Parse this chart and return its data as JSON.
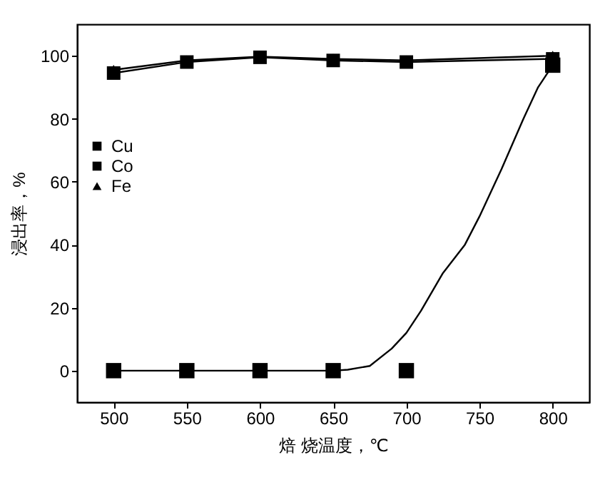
{
  "chart_data": {
    "type": "line",
    "xlabel": "焙 烧温度，℃",
    "ylabel": "浸出率，%",
    "x": [
      500,
      550,
      600,
      650,
      700,
      800
    ],
    "xlim": [
      475,
      825
    ],
    "xticks": [
      500,
      550,
      600,
      650,
      700,
      750,
      800
    ],
    "ylim": [
      -10,
      110
    ],
    "yticks": [
      0,
      20,
      40,
      60,
      80,
      100
    ],
    "grid": false,
    "legend": "left",
    "line_style": "solid",
    "series": [
      {
        "name": "Cu",
        "type": "scatter",
        "marker": "square",
        "color": "#000000",
        "values": [
          0,
          0,
          0,
          0,
          0,
          97
        ]
      },
      {
        "name": "Co",
        "marker": "square",
        "color": "#000000",
        "values": [
          94.5,
          98,
          99.5,
          98.5,
          98,
          99
        ]
      },
      {
        "name": "Fe",
        "marker": "triangle",
        "color": "#000000",
        "values": [
          95.5,
          98.5,
          99.7,
          99,
          98.5,
          100
        ]
      },
      {
        "type": "line",
        "marker": "none",
        "color": "#000000",
        "x": [
          500,
          650,
          660,
          675,
          690,
          700,
          710,
          725,
          740,
          750,
          760,
          765,
          780,
          790,
          800
        ],
        "values": [
          0,
          0,
          0.3,
          1.5,
          7,
          12,
          19,
          31,
          40,
          49,
          59,
          64,
          80,
          90,
          97
        ]
      }
    ]
  }
}
